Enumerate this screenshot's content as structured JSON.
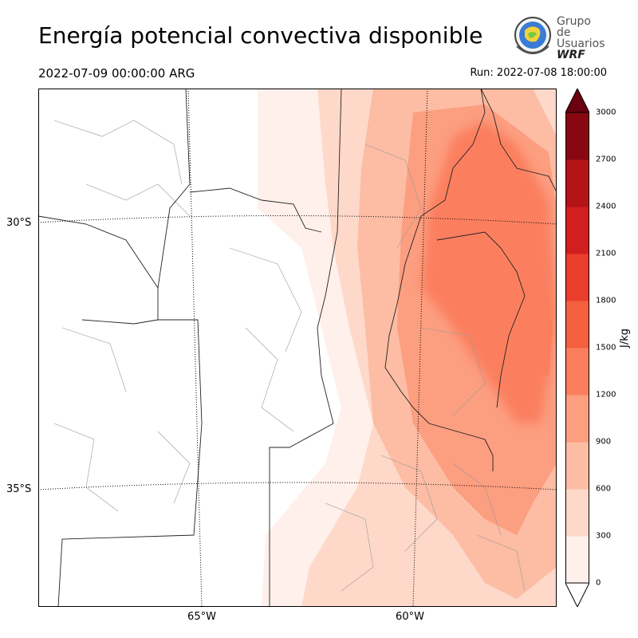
{
  "title": "Energía potencial convectiva disponible",
  "valid_time": "2022-07-09 00:00:00 ARG",
  "run_time": "Run: 2022-07-08 18:00:00",
  "logo": {
    "line1": "Grupo de",
    "line2": "Usuarios",
    "line3": "WRF"
  },
  "map": {
    "lat_labels": [
      "30°S",
      "35°S"
    ],
    "lon_labels": [
      "65°W",
      "60°W"
    ]
  },
  "colorbar": {
    "unit": "J/kg",
    "ticks": [
      "0",
      "300",
      "600",
      "900",
      "1200",
      "1500",
      "1800",
      "2100",
      "2400",
      "2700",
      "3000"
    ],
    "colors": [
      "#fff0eb",
      "#fed9ca",
      "#fcbda4",
      "#fc9e80",
      "#fb7f5f",
      "#f5603f",
      "#ea3d2c",
      "#d21e20",
      "#b41318",
      "#880812",
      "#6a0010"
    ]
  }
}
